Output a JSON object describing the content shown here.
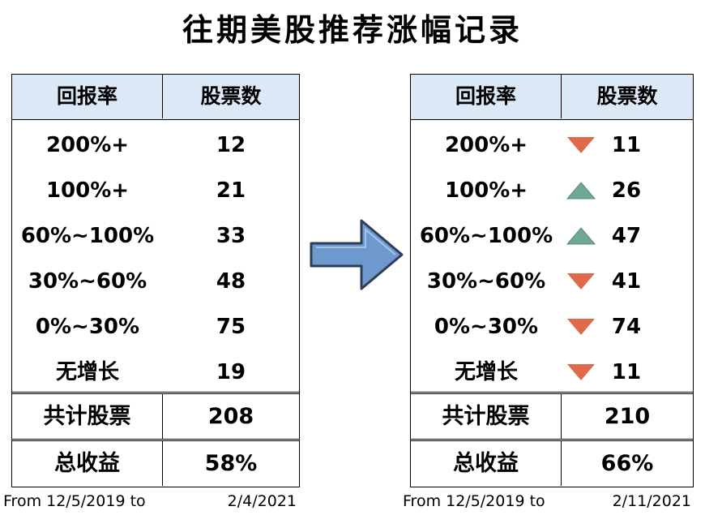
{
  "title": "往期美股推荐涨幅记录",
  "headers": {
    "return": "回报率",
    "count": "股票数"
  },
  "left": {
    "rows": [
      {
        "label": "200%+",
        "value": "12"
      },
      {
        "label": "100%+",
        "value": "21"
      },
      {
        "label": "60%~100%",
        "value": "33"
      },
      {
        "label": "30%~60%",
        "value": "48"
      },
      {
        "label": "0%~30%",
        "value": "75"
      },
      {
        "label": "无增长",
        "value": "19"
      }
    ],
    "total_label": "共计股票",
    "total_value": "208",
    "gain_label": "总收益",
    "gain_value": "58%",
    "date_from": "From 12/5/2019 to",
    "date_to": "2/4/2021"
  },
  "right": {
    "rows": [
      {
        "label": "200%+",
        "value": "11",
        "trend": "down"
      },
      {
        "label": "100%+",
        "value": "26",
        "trend": "up"
      },
      {
        "label": "60%~100%",
        "value": "47",
        "trend": "up"
      },
      {
        "label": "30%~60%",
        "value": "41",
        "trend": "down"
      },
      {
        "label": "0%~30%",
        "value": "74",
        "trend": "down"
      },
      {
        "label": "无增长",
        "value": "11",
        "trend": "down"
      }
    ],
    "total_label": "共计股票",
    "total_value": "210",
    "gain_label": "总收益",
    "gain_value": "66%",
    "date_from": "From 12/5/2019 to",
    "date_to": "2/11/2021"
  },
  "colors": {
    "header_bg": "#dbe9f7",
    "up": "#6fa895",
    "down": "#e0694a",
    "arrow": "#6e99cf"
  },
  "icons": {
    "transition_arrow": "right-arrow-icon",
    "up": "triangle-up-icon",
    "down": "triangle-down-icon"
  }
}
